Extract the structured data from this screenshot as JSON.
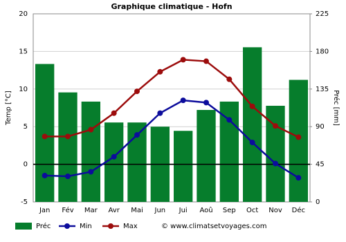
{
  "chart_data": {
    "type": "combo",
    "title": "Graphique climatique - Hofn",
    "y_label": "Temp [°C]",
    "y2_label": "Préc [mm]",
    "categories": [
      "Jan",
      "Fév",
      "Mar",
      "Avr",
      "Mai",
      "Jun",
      "Jui",
      "Aoû",
      "Sep",
      "Oct",
      "Nov",
      "Déc"
    ],
    "series": [
      {
        "name": "Préc",
        "type": "bar",
        "axis": "y2",
        "color": "#067d2c",
        "values": [
          165,
          131,
          120,
          95,
          95,
          90,
          85,
          110,
          120,
          185,
          115,
          146
        ]
      },
      {
        "name": "Min",
        "type": "line",
        "color": "#0c0c9c",
        "values": [
          -1.5,
          -1.6,
          -1.0,
          1.0,
          3.9,
          6.8,
          8.5,
          8.2,
          5.9,
          2.9,
          0.1,
          -1.8
        ]
      },
      {
        "name": "Max",
        "type": "line",
        "color": "#9c0c0c",
        "values": [
          3.7,
          3.7,
          4.6,
          6.8,
          9.7,
          12.3,
          13.9,
          13.7,
          11.3,
          7.7,
          5.1,
          3.6
        ]
      }
    ],
    "ylim": [
      -5,
      20
    ],
    "yticks": [
      -5,
      0,
      5,
      10,
      15,
      20
    ],
    "y2lim": [
      0,
      225
    ],
    "y2ticks": [
      0,
      45,
      90,
      135,
      180,
      225
    ],
    "grid": true,
    "source": "© www.climatsetvoyages.com"
  }
}
